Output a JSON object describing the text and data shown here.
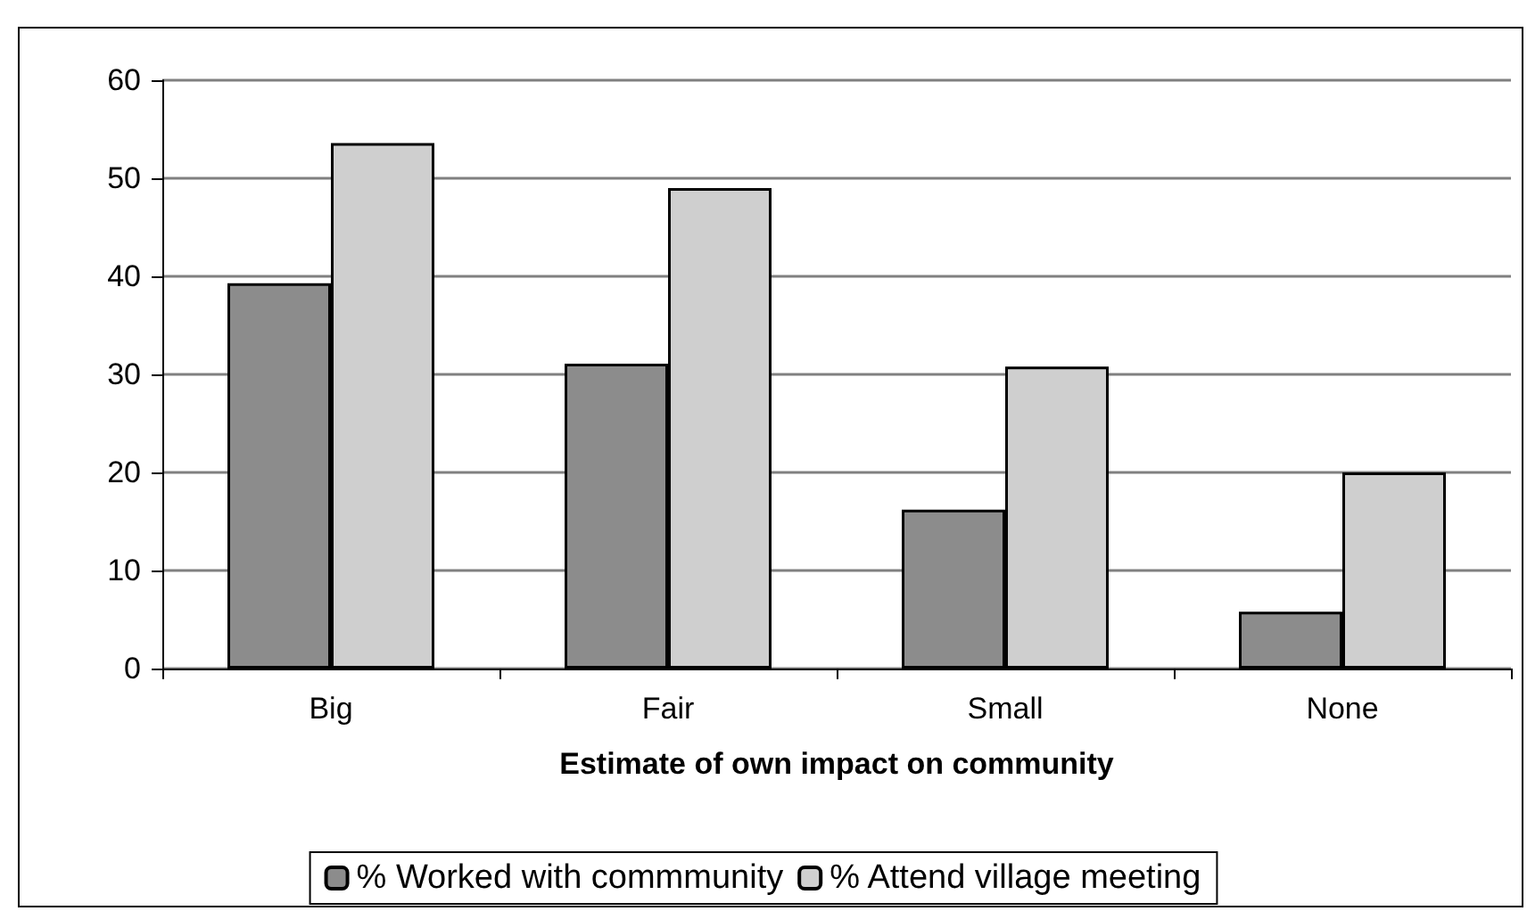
{
  "chart_data": {
    "type": "bar",
    "xlabel": "Estimate of own impact on community",
    "categories": [
      "Big",
      "Fair",
      "Small",
      "None"
    ],
    "series": [
      {
        "name": "% Worked with commmunity",
        "color": "#8c8c8c",
        "values": [
          39.3,
          31.1,
          16.2,
          5.8
        ]
      },
      {
        "name": "% Attend village meeting",
        "color": "#cfcfcf",
        "values": [
          53.6,
          49.0,
          30.8,
          20.0
        ]
      }
    ],
    "ylim": [
      0,
      60
    ],
    "yticks": [
      0,
      10,
      20,
      30,
      40,
      50,
      60
    ],
    "grid": "y",
    "legend": "bottom"
  }
}
